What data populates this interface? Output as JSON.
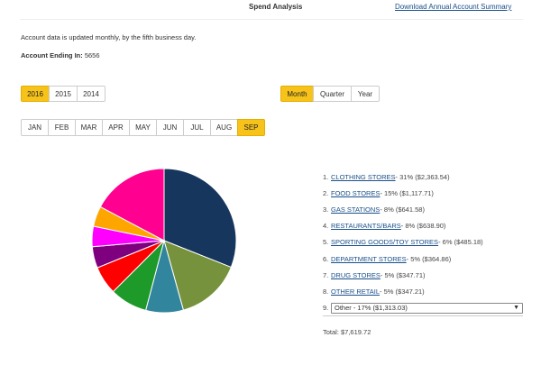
{
  "header": {
    "title": "Spend Analysis",
    "download_label": "Download Annual Account Summary"
  },
  "notice": "Account data is updated monthly, by the fifth business day.",
  "account": {
    "label": "Account Ending In:",
    "value": "5656"
  },
  "years": [
    {
      "label": "2016",
      "active": true
    },
    {
      "label": "2015",
      "active": false
    },
    {
      "label": "2014",
      "active": false
    }
  ],
  "periods": [
    {
      "label": "Month",
      "active": true
    },
    {
      "label": "Quarter",
      "active": false
    },
    {
      "label": "Year",
      "active": false
    }
  ],
  "months": [
    {
      "label": "JAN",
      "active": false
    },
    {
      "label": "FEB",
      "active": false
    },
    {
      "label": "MAR",
      "active": false
    },
    {
      "label": "APR",
      "active": false
    },
    {
      "label": "MAY",
      "active": false
    },
    {
      "label": "JUN",
      "active": false
    },
    {
      "label": "JUL",
      "active": false
    },
    {
      "label": "AUG",
      "active": false
    },
    {
      "label": "SEP",
      "active": true
    }
  ],
  "chart_data": {
    "type": "pie",
    "slices": [
      {
        "name": "CLOTHING STORES",
        "percent": 31,
        "amount": 2363.54,
        "color": "#17365d"
      },
      {
        "name": "FOOD STORES",
        "percent": 15,
        "amount": 1117.71,
        "color": "#76923c"
      },
      {
        "name": "GAS STATIONS",
        "percent": 8,
        "amount": 641.58,
        "color": "#31859c"
      },
      {
        "name": "RESTAURANTS/BARS",
        "percent": 8,
        "amount": 638.9,
        "color": "#1e9a2a"
      },
      {
        "name": "SPORTING GOODS/TOY STORES",
        "percent": 6,
        "amount": 485.18,
        "color": "#ff0000"
      },
      {
        "name": "DEPARTMENT STORES",
        "percent": 5,
        "amount": 364.86,
        "color": "#7f007f"
      },
      {
        "name": "DRUG STORES",
        "percent": 5,
        "amount": 347.71,
        "color": "#ff00ff"
      },
      {
        "name": "OTHER RETAIL",
        "percent": 5,
        "amount": 347.21,
        "color": "#ffa500"
      },
      {
        "name": "Other",
        "percent": 17,
        "amount": 1313.03,
        "color": "#ff0090"
      }
    ]
  },
  "legend": [
    {
      "num": "1.",
      "name": "CLOTHING STORES",
      "detail": " - 31% ($2,363.54)"
    },
    {
      "num": "2.",
      "name": "FOOD STORES",
      "detail": " - 15% ($1,117.71)"
    },
    {
      "num": "3.",
      "name": "GAS STATIONS",
      "detail": " - 8% ($641.58)"
    },
    {
      "num": "4.",
      "name": "RESTAURANTS/BARS",
      "detail": " - 8% ($638.90)"
    },
    {
      "num": "5.",
      "name": "SPORTING GOODS/TOY STORES",
      "detail": " - 6% ($485.18)"
    },
    {
      "num": "6.",
      "name": "DEPARTMENT STORES",
      "detail": " - 5% ($364.86)"
    },
    {
      "num": "7.",
      "name": "DRUG STORES",
      "detail": " - 5% ($347.71)"
    },
    {
      "num": "8.",
      "name": "OTHER RETAIL",
      "detail": " - 5% ($347.21)"
    }
  ],
  "legend_select": {
    "num": "9.",
    "value": "Other - 17% ($1,313.03)",
    "arrow_icon": "chevron-down-icon"
  },
  "total": "Total: $7,619.72"
}
